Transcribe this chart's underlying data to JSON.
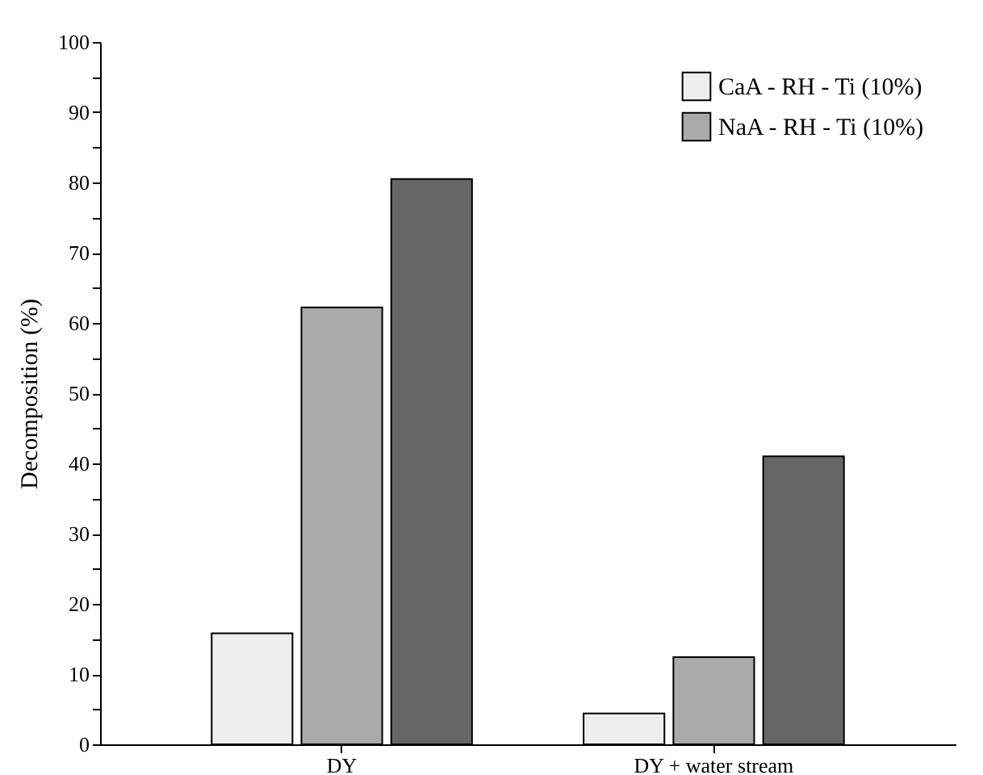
{
  "chart_data": {
    "type": "bar",
    "ylabel": "Decomposition (%)",
    "categories": [
      "DY",
      "DY + water stream"
    ],
    "series": [
      {
        "name": "CaA - RH - Ti (10%)",
        "color": "#eeeeee",
        "values": [
          15.8,
          4.4
        ]
      },
      {
        "name": "NaA - RH - Ti (10%)",
        "color": "#aaaaaa",
        "values": [
          62.2,
          12.4
        ]
      },
      {
        "color": "#666666",
        "values": [
          80.5,
          41
        ]
      }
    ],
    "ylim": [
      0,
      100
    ],
    "yticks": [
      0,
      {
        "value": 5,
        "label": null
      },
      10,
      {
        "value": 15,
        "label": null
      },
      20,
      {
        "value": 25,
        "label": null
      },
      30,
      {
        "value": 35,
        "label": null
      },
      40,
      {
        "value": 45,
        "label": null
      },
      50,
      {
        "value": 55,
        "label": null
      },
      60,
      {
        "value": 65,
        "label": null
      },
      70,
      {
        "value": 75,
        "label": null
      },
      80,
      {
        "value": 85,
        "label": null
      },
      90,
      {
        "value": 95,
        "label": null
      },
      100
    ],
    "grid": false,
    "legend": "top right"
  }
}
